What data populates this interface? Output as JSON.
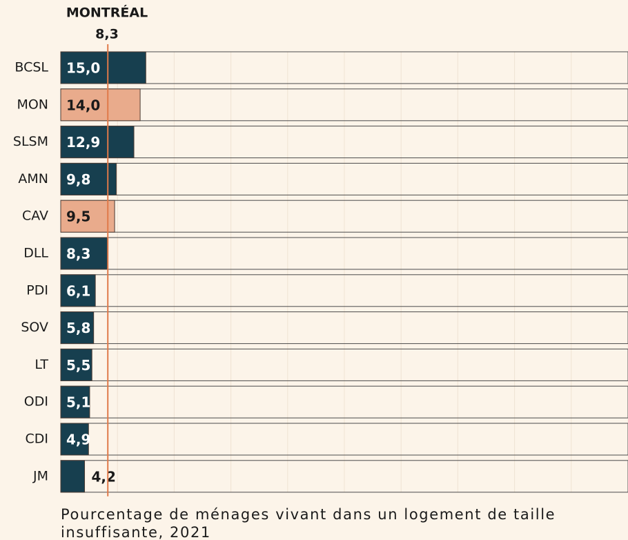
{
  "chart_data": {
    "type": "barh",
    "title": "Pourcentage de ménages vivant dans un logement de taille insuffisante, 2021",
    "categories": [
      "BCSL",
      "MON",
      "SLSM",
      "AMN",
      "CAV",
      "DLL",
      "PDI",
      "SOV",
      "LT",
      "ODI",
      "CDI",
      "JM"
    ],
    "values": [
      15.0,
      14.0,
      12.9,
      9.8,
      9.5,
      8.3,
      6.1,
      5.8,
      5.5,
      5.1,
      4.9,
      4.2
    ],
    "value_labels": [
      "15,0",
      "14,0",
      "12,9",
      "9,8",
      "9,5",
      "8,3",
      "6,1",
      "5,8",
      "5,5",
      "5,1",
      "4,9",
      "4,2"
    ],
    "colors": [
      "#173f4f",
      "#e9ab8c",
      "#173f4f",
      "#173f4f",
      "#e9ab8c",
      "#173f4f",
      "#173f4f",
      "#173f4f",
      "#173f4f",
      "#173f4f",
      "#173f4f",
      "#173f4f"
    ],
    "xlim": [
      0,
      100
    ],
    "xticks": [
      0,
      10,
      20,
      30,
      40,
      50,
      60,
      70,
      80,
      90,
      100
    ],
    "grid": true,
    "reference": {
      "label": "MONTRÉAL",
      "value": 8.3,
      "value_label": "8,3",
      "color": "#e07a4a"
    }
  }
}
